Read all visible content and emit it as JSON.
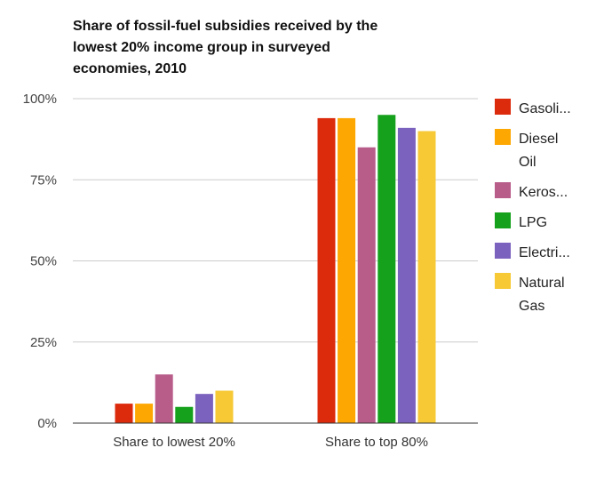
{
  "chart_data": {
    "type": "bar",
    "title_lines": [
      "Share of fossil-fuel subsidies received by the",
      "lowest 20% income group in surveyed",
      "economies, 2010"
    ],
    "categories": [
      "Share to lowest 20%",
      "Share to top 80%"
    ],
    "series": [
      {
        "name": "Gasoline",
        "legend_label": [
          "Gasoli..."
        ],
        "color": "#dc2a0c",
        "values": [
          6,
          94
        ]
      },
      {
        "name": "Diesel Oil",
        "legend_label": [
          "Diesel",
          "Oil"
        ],
        "color": "#fda702",
        "values": [
          6,
          94
        ]
      },
      {
        "name": "Kerosene",
        "legend_label": [
          "Keros..."
        ],
        "color": "#b85c8a",
        "values": [
          15,
          85
        ]
      },
      {
        "name": "LPG",
        "legend_label": [
          "LPG"
        ],
        "color": "#16a11c",
        "values": [
          5,
          95
        ]
      },
      {
        "name": "Electricity",
        "legend_label": [
          "Electri..."
        ],
        "color": "#7c62bf",
        "values": [
          9,
          91
        ]
      },
      {
        "name": "Natural Gas",
        "legend_label": [
          "Natural",
          "Gas"
        ],
        "color": "#f6c935",
        "values": [
          10,
          90
        ]
      }
    ],
    "yticks": [
      "0%",
      "25%",
      "50%",
      "75%",
      "100%"
    ],
    "ytick_values": [
      0,
      25,
      50,
      75,
      100
    ],
    "ylim": [
      0,
      100
    ],
    "xlabel": "",
    "ylabel": "",
    "legend_position": "right",
    "grid": true
  }
}
